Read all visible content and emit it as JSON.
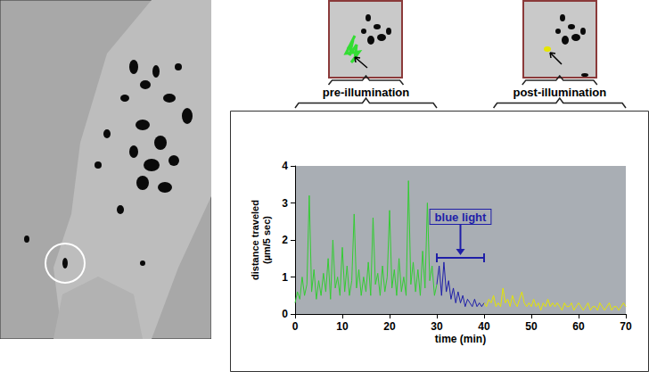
{
  "chart_data": {
    "type": "line",
    "xlabel": "time (min)",
    "ylabel": "distance traveled\n(µm/5 sec)",
    "xlim": [
      0,
      70
    ],
    "xticks": [
      0,
      10,
      20,
      30,
      40,
      50,
      60,
      70
    ],
    "ylim": [
      0,
      4
    ],
    "yticks": [
      0,
      1,
      2,
      3,
      4
    ],
    "grid": false,
    "series": [
      {
        "color": "#33cc33",
        "x": [
          0,
          0.5,
          1,
          1.5,
          2,
          2.5,
          3,
          3.5,
          4,
          4.5,
          5,
          5.5,
          6,
          6.5,
          7,
          7.5,
          8,
          8.5,
          9,
          9.5,
          10,
          10.5,
          11,
          11.5,
          12,
          12.5,
          13,
          13.5,
          14,
          14.5,
          15,
          15.5,
          16,
          16.5,
          17,
          17.5,
          18,
          18.5,
          19,
          19.5,
          20,
          20.5,
          21,
          21.5,
          22,
          22.5,
          23,
          23.5,
          24,
          24.5,
          25,
          25.5,
          26,
          26.5,
          27,
          27.5,
          28,
          28.5,
          29,
          29.5,
          30
        ],
        "values": [
          0.3,
          0.6,
          0.4,
          1.0,
          0.5,
          0.8,
          3.2,
          0.6,
          1.2,
          0.4,
          0.9,
          0.5,
          1.1,
          0.6,
          1.5,
          0.4,
          2.0,
          0.7,
          1.0,
          0.5,
          1.8,
          0.6,
          1.3,
          0.5,
          0.9,
          2.7,
          0.7,
          1.2,
          0.5,
          1.0,
          0.6,
          1.4,
          0.5,
          2.6,
          0.8,
          1.1,
          0.5,
          1.3,
          0.6,
          1.0,
          2.8,
          0.7,
          1.2,
          0.5,
          1.5,
          0.6,
          1.0,
          0.5,
          3.6,
          0.8,
          1.4,
          0.6,
          1.2,
          0.5,
          1.7,
          0.7,
          3.0,
          0.9,
          1.3,
          0.5,
          0.8
        ]
      },
      {
        "color": "#1f1fa8",
        "x": [
          30,
          30.5,
          31,
          31.5,
          32,
          32.5,
          33,
          33.5,
          34,
          34.5,
          35,
          35.5,
          36,
          36.5,
          37,
          37.5,
          38,
          38.5,
          39,
          39.5,
          40
        ],
        "values": [
          0.8,
          1.3,
          0.5,
          1.4,
          0.6,
          0.9,
          0.4,
          0.7,
          0.3,
          0.6,
          0.3,
          0.5,
          0.2,
          0.4,
          0.3,
          0.2,
          0.4,
          0.2,
          0.3,
          0.2,
          0.3
        ]
      },
      {
        "color": "#e6e600",
        "x": [
          40,
          40.5,
          41,
          41.5,
          42,
          42.5,
          43,
          43.5,
          44,
          44.5,
          45,
          45.5,
          46,
          46.5,
          47,
          47.5,
          48,
          48.5,
          49,
          49.5,
          50,
          50.5,
          51,
          51.5,
          52,
          52.5,
          53,
          53.5,
          54,
          54.5,
          55,
          55.5,
          56,
          56.5,
          57,
          57.5,
          58,
          58.5,
          59,
          59.5,
          60,
          60.5,
          61,
          61.5,
          62,
          62.5,
          63,
          63.5,
          64,
          64.5,
          65,
          65.5,
          66,
          66.5,
          67,
          67.5,
          68,
          68.5,
          69,
          69.5,
          70
        ],
        "values": [
          0.3,
          0.2,
          0.4,
          0.3,
          0.5,
          0.2,
          0.3,
          0.2,
          0.7,
          0.3,
          0.4,
          0.2,
          0.5,
          0.3,
          0.2,
          0.4,
          0.6,
          0.3,
          0.2,
          0.3,
          0.2,
          0.4,
          0.2,
          0.3,
          0.1,
          0.3,
          0.2,
          0.4,
          0.2,
          0.3,
          0.2,
          0.3,
          0.2,
          0.1,
          0.3,
          0.2,
          0.2,
          0.3,
          0.1,
          0.2,
          0.3,
          0.2,
          0.1,
          0.2,
          0.3,
          0.1,
          0.2,
          0.2,
          0.1,
          0.3,
          0.2,
          0.1,
          0.2,
          0.3,
          0.1,
          0.2,
          0.2,
          0.1,
          0.2,
          0.3,
          0.2
        ]
      }
    ],
    "braces": [
      {
        "text": "pre-illumination",
        "x": [
          0,
          30
        ]
      },
      {
        "text": "post-illumination",
        "x": [
          42,
          70
        ]
      }
    ],
    "annotations": [
      {
        "text": "blue light",
        "x": [
          30,
          40
        ],
        "color": "#1f1fa8"
      }
    ]
  }
}
